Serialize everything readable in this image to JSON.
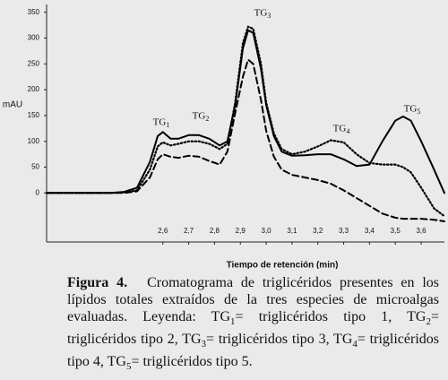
{
  "chart_data": {
    "type": "line",
    "ylabel": "mAU",
    "xlabel": "Tiempo de retención (min)",
    "annotations": [
      "TG1",
      "TG2",
      "TG3",
      "TG4",
      "TG5"
    ],
    "x": [
      2.15,
      2.3,
      2.4,
      2.45,
      2.5,
      2.55,
      2.58,
      2.6,
      2.63,
      2.66,
      2.7,
      2.74,
      2.78,
      2.82,
      2.85,
      2.88,
      2.91,
      2.93,
      2.95,
      2.98,
      3.0,
      3.03,
      3.06,
      3.1,
      3.15,
      3.2,
      3.25,
      3.3,
      3.35,
      3.4,
      3.45,
      3.5,
      3.53,
      3.56,
      3.6,
      3.65,
      3.69
    ],
    "series": [
      {
        "color": "#000000",
        "style": "solid",
        "values": [
          0,
          0,
          0,
          2,
          10,
          60,
          110,
          118,
          105,
          105,
          112,
          112,
          105,
          92,
          100,
          170,
          280,
          315,
          310,
          240,
          170,
          110,
          80,
          72,
          73,
          75,
          75,
          65,
          52,
          55,
          100,
          140,
          148,
          140,
          100,
          45,
          0
        ]
      },
      {
        "color": "#000000",
        "style": "dotted",
        "values": [
          0,
          0,
          0,
          1,
          5,
          45,
          90,
          98,
          92,
          95,
          100,
          100,
          95,
          85,
          95,
          175,
          290,
          322,
          318,
          250,
          175,
          115,
          85,
          75,
          80,
          90,
          102,
          98,
          75,
          58,
          55,
          55,
          50,
          40,
          10,
          -30,
          -45
        ]
      },
      {
        "color": "#000000",
        "style": "dashed",
        "values": [
          0,
          0,
          0,
          0,
          3,
          30,
          65,
          75,
          70,
          68,
          72,
          70,
          62,
          55,
          80,
          155,
          225,
          258,
          250,
          180,
          120,
          70,
          45,
          35,
          30,
          25,
          18,
          5,
          -10,
          -25,
          -40,
          -48,
          -50,
          -50,
          -50,
          -52,
          -55
        ]
      }
    ],
    "xlim": [
      2.15,
      3.69
    ],
    "ylim": [
      -95,
      365
    ],
    "xticks": [
      {
        "value": 2.6,
        "label": "2,6"
      },
      {
        "value": 2.7,
        "label": "2,7"
      },
      {
        "value": 2.8,
        "label": "2,8"
      },
      {
        "value": 2.9,
        "label": "2,9"
      },
      {
        "value": 3.0,
        "label": "3,0"
      },
      {
        "value": 3.1,
        "label": "3,1"
      },
      {
        "value": 3.2,
        "label": "3,2"
      },
      {
        "value": 3.3,
        "label": "3,3"
      },
      {
        "value": 3.4,
        "label": "3,4"
      },
      {
        "value": 3.5,
        "label": "3,5"
      },
      {
        "value": 3.6,
        "label": "3,6"
      }
    ],
    "yticks": [
      0,
      50,
      100,
      150,
      200,
      250,
      300,
      350
    ],
    "grid": false
  },
  "caption": {
    "label": "Figura 4.",
    "text": "Cromatograma de triglicéridos presentes en los lípidos totales extraídos de la tres especies de microalgas evaluadas. Leyenda: TG1= triglicéridos tipo 1, TG2= triglicéridos tipo 2, TG3= triglicéridos tipo 3, TG4= triglicéridos tipo 4, TG5= triglicéridos tipo 5."
  }
}
